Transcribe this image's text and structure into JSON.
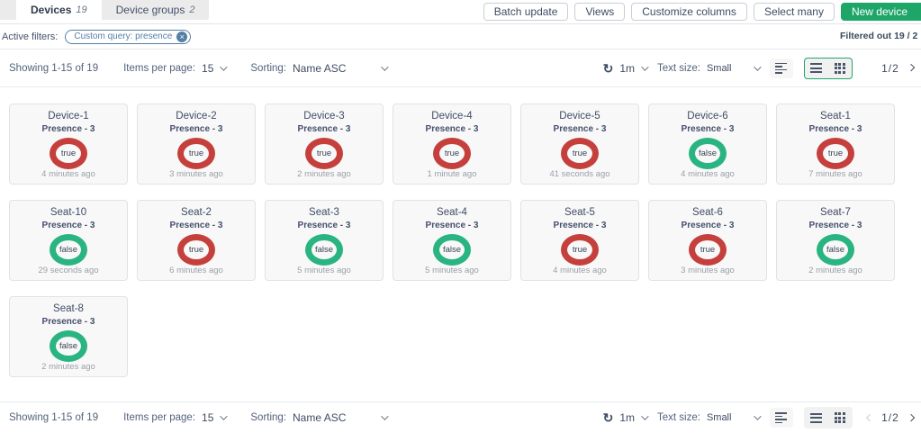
{
  "tabs": [
    {
      "label": "Devices",
      "count": "19"
    },
    {
      "label": "Device groups",
      "count": "2"
    }
  ],
  "header_buttons": [
    {
      "label": "Batch update"
    },
    {
      "label": "Views"
    },
    {
      "label": "Customize columns"
    },
    {
      "label": "Select many"
    }
  ],
  "new_device_label": "New device",
  "filters": {
    "label": "Active filters:",
    "chip": "Custom query: presence",
    "chip_close": "×",
    "filtered_out": "Filtered out 19 / 2"
  },
  "toolbar": {
    "showing": "Showing 1-15 of 19",
    "items_per_page_label": "Items per page:",
    "items_per_page_value": "15",
    "sorting_label": "Sorting:",
    "sorting_value": "Name ASC",
    "refresh_icon": "↻",
    "refresh_interval": "1m",
    "text_size_label": "Text size:",
    "text_size_value": "Small",
    "page": "1/2"
  },
  "cards": [
    {
      "name": "Device-1",
      "subtitle": "Presence - 3",
      "value": "true",
      "time": "4 minutes ago"
    },
    {
      "name": "Device-2",
      "subtitle": "Presence - 3",
      "value": "true",
      "time": "3 minutes ago"
    },
    {
      "name": "Device-3",
      "subtitle": "Presence - 3",
      "value": "true",
      "time": "2 minutes ago"
    },
    {
      "name": "Device-4",
      "subtitle": "Presence - 3",
      "value": "true",
      "time": "1 minute ago"
    },
    {
      "name": "Device-5",
      "subtitle": "Presence - 3",
      "value": "true",
      "time": "41 seconds ago"
    },
    {
      "name": "Device-6",
      "subtitle": "Presence - 3",
      "value": "false",
      "time": "4 minutes ago"
    },
    {
      "name": "Seat-1",
      "subtitle": "Presence - 3",
      "value": "true",
      "time": "7 minutes ago"
    },
    {
      "name": "Seat-10",
      "subtitle": "Presence - 3",
      "value": "false",
      "time": "29 seconds ago"
    },
    {
      "name": "Seat-2",
      "subtitle": "Presence - 3",
      "value": "true",
      "time": "6 minutes ago"
    },
    {
      "name": "Seat-3",
      "subtitle": "Presence - 3",
      "value": "false",
      "time": "5 minutes ago"
    },
    {
      "name": "Seat-4",
      "subtitle": "Presence - 3",
      "value": "false",
      "time": "5 minutes ago"
    },
    {
      "name": "Seat-5",
      "subtitle": "Presence - 3",
      "value": "true",
      "time": "4 minutes ago"
    },
    {
      "name": "Seat-6",
      "subtitle": "Presence - 3",
      "value": "true",
      "time": "3 minutes ago"
    },
    {
      "name": "Seat-7",
      "subtitle": "Presence - 3",
      "value": "false",
      "time": "2 minutes ago"
    },
    {
      "name": "Seat-8",
      "subtitle": "Presence - 3",
      "value": "false",
      "time": "2 minutes ago"
    }
  ],
  "colors": {
    "accent_green": "#1ea669",
    "ring_red": "#c5403c",
    "ring_green": "#2ab482",
    "chip_blue": "#567fa5"
  }
}
